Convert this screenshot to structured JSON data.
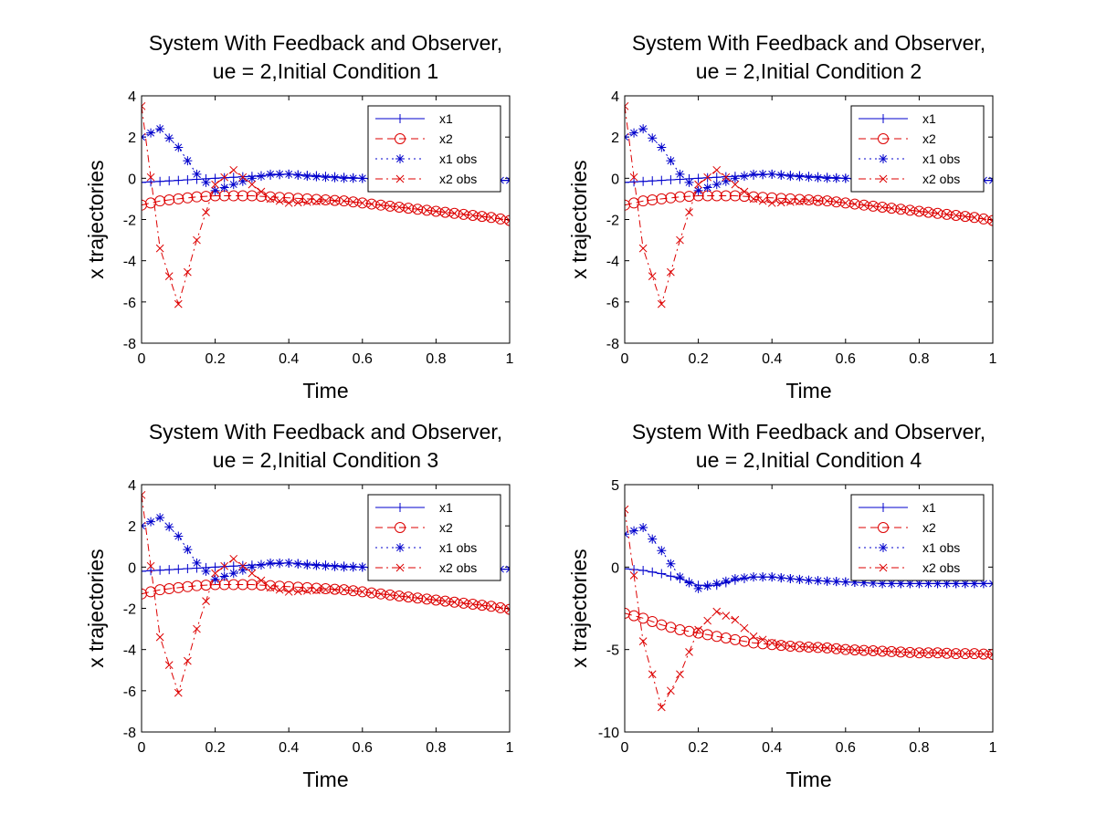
{
  "chart_data": [
    {
      "type": "line",
      "title_lines": [
        "System With Feedback and Observer,",
        "ue = 2,Initial Condition 1"
      ],
      "xlabel": "Time",
      "ylabel": "x trajectories",
      "xlim": [
        0,
        1
      ],
      "ylim": [
        -8,
        4
      ],
      "xticks": [
        "0",
        "0.2",
        "0.4",
        "0.6",
        "0.8",
        "1"
      ],
      "yticks": [
        "-8",
        "-6",
        "-4",
        "-2",
        "0",
        "2",
        "4"
      ],
      "grid": false,
      "legend_position": "top-right",
      "x": [
        0,
        0.05,
        0.1,
        0.15,
        0.2,
        0.25,
        0.3,
        0.35,
        0.4,
        0.45,
        0.5,
        0.55,
        0.6,
        0.65,
        0.7,
        0.75,
        0.8,
        0.85,
        0.9,
        0.95,
        1
      ],
      "series": [
        {
          "name": "x1",
          "color": "#0000cc",
          "dash": "none",
          "marker": "plus",
          "values": [
            -0.2,
            -0.15,
            -0.1,
            -0.05,
            0.0,
            0.05,
            0.1,
            0.15,
            0.2,
            0.15,
            0.1,
            0.05,
            0.0,
            -0.05,
            -0.1,
            -0.1,
            -0.1,
            -0.1,
            -0.1,
            -0.1,
            -0.1
          ]
        },
        {
          "name": "x2",
          "color": "#dd0000",
          "dash": "8,5",
          "marker": "circle",
          "values": [
            -1.3,
            -1.1,
            -1.0,
            -0.9,
            -0.85,
            -0.85,
            -0.85,
            -0.9,
            -0.95,
            -1.0,
            -1.05,
            -1.1,
            -1.2,
            -1.3,
            -1.4,
            -1.5,
            -1.6,
            -1.7,
            -1.8,
            -1.9,
            -2.05
          ]
        },
        {
          "name": "x1 obs",
          "color": "#0000cc",
          "dash": "2,4",
          "marker": "star",
          "values": [
            2.0,
            2.4,
            1.5,
            0.2,
            -0.6,
            -0.3,
            0.0,
            0.2,
            0.2,
            0.1,
            0.05,
            0.0,
            0.0,
            -0.05,
            -0.1,
            -0.1,
            -0.1,
            -0.1,
            -0.1,
            -0.1,
            -0.1
          ]
        },
        {
          "name": "x2 obs",
          "color": "#dd0000",
          "dash": "8,4,2,4",
          "marker": "x",
          "values": [
            3.5,
            -3.4,
            -6.1,
            -3.0,
            -0.3,
            0.4,
            -0.3,
            -1.0,
            -1.2,
            -1.15,
            -1.1,
            -1.1,
            -1.2,
            -1.3,
            -1.4,
            -1.5,
            -1.6,
            -1.7,
            -1.8,
            -1.9,
            -2.05
          ]
        }
      ]
    },
    {
      "type": "line",
      "title_lines": [
        "System With Feedback and Observer,",
        "ue = 2,Initial Condition 2"
      ],
      "xlabel": "Time",
      "ylabel": "x trajectories",
      "xlim": [
        0,
        1
      ],
      "ylim": [
        -8,
        4
      ],
      "xticks": [
        "0",
        "0.2",
        "0.4",
        "0.6",
        "0.8",
        "1"
      ],
      "yticks": [
        "-8",
        "-6",
        "-4",
        "-2",
        "0",
        "2",
        "4"
      ],
      "grid": false,
      "legend_position": "top-right",
      "x": [
        0,
        0.05,
        0.1,
        0.15,
        0.2,
        0.25,
        0.3,
        0.35,
        0.4,
        0.45,
        0.5,
        0.55,
        0.6,
        0.65,
        0.7,
        0.75,
        0.8,
        0.85,
        0.9,
        0.95,
        1
      ],
      "series": [
        {
          "name": "x1",
          "color": "#0000cc",
          "dash": "none",
          "marker": "plus",
          "values": [
            -0.2,
            -0.15,
            -0.1,
            -0.05,
            0.0,
            0.05,
            0.1,
            0.15,
            0.2,
            0.15,
            0.1,
            0.05,
            0.0,
            -0.05,
            -0.1,
            -0.1,
            -0.1,
            -0.1,
            -0.1,
            -0.1,
            -0.1
          ]
        },
        {
          "name": "x2",
          "color": "#dd0000",
          "dash": "8,5",
          "marker": "circle",
          "values": [
            -1.3,
            -1.1,
            -1.0,
            -0.9,
            -0.85,
            -0.85,
            -0.85,
            -0.9,
            -0.95,
            -1.0,
            -1.05,
            -1.1,
            -1.2,
            -1.3,
            -1.4,
            -1.5,
            -1.6,
            -1.7,
            -1.8,
            -1.9,
            -2.05
          ]
        },
        {
          "name": "x1 obs",
          "color": "#0000cc",
          "dash": "2,4",
          "marker": "star",
          "values": [
            2.0,
            2.4,
            1.5,
            0.2,
            -0.6,
            -0.3,
            0.0,
            0.2,
            0.2,
            0.1,
            0.05,
            0.0,
            0.0,
            -0.05,
            -0.1,
            -0.1,
            -0.1,
            -0.1,
            -0.1,
            -0.1,
            -0.1
          ]
        },
        {
          "name": "x2 obs",
          "color": "#dd0000",
          "dash": "8,4,2,4",
          "marker": "x",
          "values": [
            3.5,
            -3.4,
            -6.1,
            -3.0,
            -0.3,
            0.4,
            -0.3,
            -1.0,
            -1.2,
            -1.15,
            -1.1,
            -1.1,
            -1.2,
            -1.3,
            -1.4,
            -1.5,
            -1.6,
            -1.7,
            -1.8,
            -1.9,
            -2.05
          ]
        }
      ]
    },
    {
      "type": "line",
      "title_lines": [
        "System With Feedback and Observer,",
        "ue = 2,Initial Condition 3"
      ],
      "xlabel": "Time",
      "ylabel": "x trajectories",
      "xlim": [
        0,
        1
      ],
      "ylim": [
        -8,
        4
      ],
      "xticks": [
        "0",
        "0.2",
        "0.4",
        "0.6",
        "0.8",
        "1"
      ],
      "yticks": [
        "-8",
        "-6",
        "-4",
        "-2",
        "0",
        "2",
        "4"
      ],
      "grid": false,
      "legend_position": "top-right",
      "x": [
        0,
        0.05,
        0.1,
        0.15,
        0.2,
        0.25,
        0.3,
        0.35,
        0.4,
        0.45,
        0.5,
        0.55,
        0.6,
        0.65,
        0.7,
        0.75,
        0.8,
        0.85,
        0.9,
        0.95,
        1
      ],
      "series": [
        {
          "name": "x1",
          "color": "#0000cc",
          "dash": "none",
          "marker": "plus",
          "values": [
            -0.2,
            -0.15,
            -0.1,
            -0.05,
            0.0,
            0.05,
            0.1,
            0.15,
            0.2,
            0.15,
            0.1,
            0.05,
            0.0,
            -0.05,
            -0.1,
            -0.1,
            -0.1,
            -0.1,
            -0.1,
            -0.1,
            -0.1
          ]
        },
        {
          "name": "x2",
          "color": "#dd0000",
          "dash": "8,5",
          "marker": "circle",
          "values": [
            -1.3,
            -1.1,
            -1.0,
            -0.9,
            -0.85,
            -0.85,
            -0.85,
            -0.9,
            -0.95,
            -1.0,
            -1.05,
            -1.1,
            -1.2,
            -1.3,
            -1.4,
            -1.5,
            -1.6,
            -1.7,
            -1.8,
            -1.9,
            -2.05
          ]
        },
        {
          "name": "x1 obs",
          "color": "#0000cc",
          "dash": "2,4",
          "marker": "star",
          "values": [
            2.0,
            2.4,
            1.5,
            0.2,
            -0.6,
            -0.3,
            0.0,
            0.2,
            0.2,
            0.1,
            0.05,
            0.0,
            0.0,
            -0.05,
            -0.1,
            -0.1,
            -0.1,
            -0.1,
            -0.1,
            -0.1,
            -0.1
          ]
        },
        {
          "name": "x2 obs",
          "color": "#dd0000",
          "dash": "8,4,2,4",
          "marker": "x",
          "values": [
            3.5,
            -3.4,
            -6.1,
            -3.0,
            -0.3,
            0.4,
            -0.3,
            -1.0,
            -1.2,
            -1.15,
            -1.1,
            -1.1,
            -1.2,
            -1.3,
            -1.4,
            -1.5,
            -1.6,
            -1.7,
            -1.8,
            -1.9,
            -2.05
          ]
        }
      ]
    },
    {
      "type": "line",
      "title_lines": [
        "System With Feedback and Observer,",
        "ue = 2,Initial Condition 4"
      ],
      "xlabel": "Time",
      "ylabel": "x trajectories",
      "xlim": [
        0,
        1
      ],
      "ylim": [
        -10,
        5
      ],
      "xticks": [
        "0",
        "0.2",
        "0.4",
        "0.6",
        "0.8",
        "1"
      ],
      "yticks": [
        "-10",
        "-5",
        "0",
        "5"
      ],
      "grid": false,
      "legend_position": "top-right",
      "x": [
        0,
        0.05,
        0.1,
        0.15,
        0.2,
        0.25,
        0.3,
        0.35,
        0.4,
        0.45,
        0.5,
        0.55,
        0.6,
        0.65,
        0.7,
        0.75,
        0.8,
        0.85,
        0.9,
        0.95,
        1
      ],
      "series": [
        {
          "name": "x1",
          "color": "#0000cc",
          "dash": "none",
          "marker": "plus",
          "values": [
            -0.1,
            -0.2,
            -0.4,
            -0.7,
            -1.1,
            -1.1,
            -0.8,
            -0.6,
            -0.6,
            -0.7,
            -0.8,
            -0.85,
            -0.9,
            -0.95,
            -1.0,
            -1.0,
            -1.0,
            -1.0,
            -1.0,
            -1.0,
            -1.0
          ]
        },
        {
          "name": "x2",
          "color": "#dd0000",
          "dash": "8,5",
          "marker": "circle",
          "values": [
            -2.8,
            -3.1,
            -3.5,
            -3.8,
            -4.0,
            -4.2,
            -4.4,
            -4.6,
            -4.7,
            -4.8,
            -4.85,
            -4.9,
            -5.0,
            -5.05,
            -5.1,
            -5.15,
            -5.2,
            -5.2,
            -5.25,
            -5.25,
            -5.3
          ]
        },
        {
          "name": "x1 obs",
          "color": "#0000cc",
          "dash": "2,4",
          "marker": "star",
          "values": [
            2.0,
            2.4,
            1.0,
            -0.6,
            -1.3,
            -1.0,
            -0.7,
            -0.6,
            -0.6,
            -0.7,
            -0.8,
            -0.85,
            -0.9,
            -0.95,
            -1.0,
            -1.0,
            -1.0,
            -1.0,
            -1.0,
            -1.0,
            -1.0
          ]
        },
        {
          "name": "x2 obs",
          "color": "#dd0000",
          "dash": "8,4,2,4",
          "marker": "x",
          "values": [
            3.5,
            -4.5,
            -8.5,
            -6.5,
            -3.8,
            -2.7,
            -3.2,
            -4.2,
            -4.6,
            -4.8,
            -4.85,
            -4.9,
            -5.0,
            -5.05,
            -5.1,
            -5.15,
            -5.2,
            -5.2,
            -5.25,
            -5.25,
            -5.3
          ]
        }
      ]
    }
  ]
}
